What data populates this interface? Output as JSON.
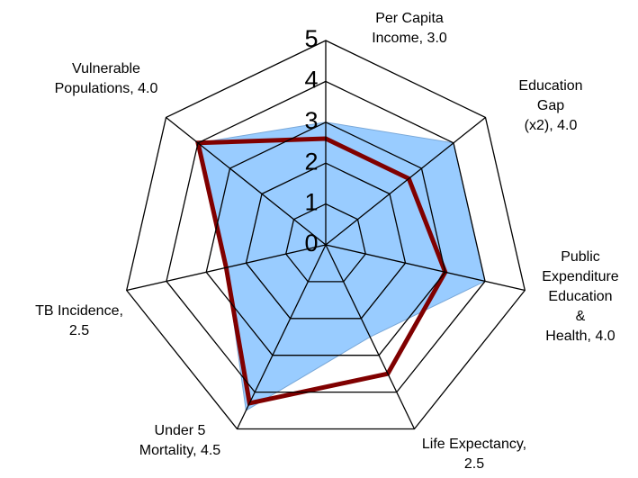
{
  "chart_data": {
    "type": "radar",
    "categories": [
      "Per Capita\nIncome, 3.0",
      "Education Gap\n(x2), 4.0",
      "Public\nExpenditure\nEducation &\nHealth, 4.0",
      "Life Expectancy,\n2.5",
      "Under 5\nMortality, 4.5",
      "TB Incidence,\n2.5",
      "Vulnerable\nPopulations, 4.0"
    ],
    "series": [
      {
        "name": "Blue",
        "color": "#99ccff",
        "values": [
          3,
          4,
          4,
          2.5,
          4.5,
          2.5,
          4
        ]
      },
      {
        "name": "Red",
        "color": "#800000",
        "values": [
          2.6,
          2.6,
          3,
          3.5,
          4.3,
          2.5,
          4
        ]
      }
    ],
    "rlim": [
      0,
      5
    ],
    "rticks": [
      0,
      1,
      2,
      3,
      4,
      5
    ]
  }
}
